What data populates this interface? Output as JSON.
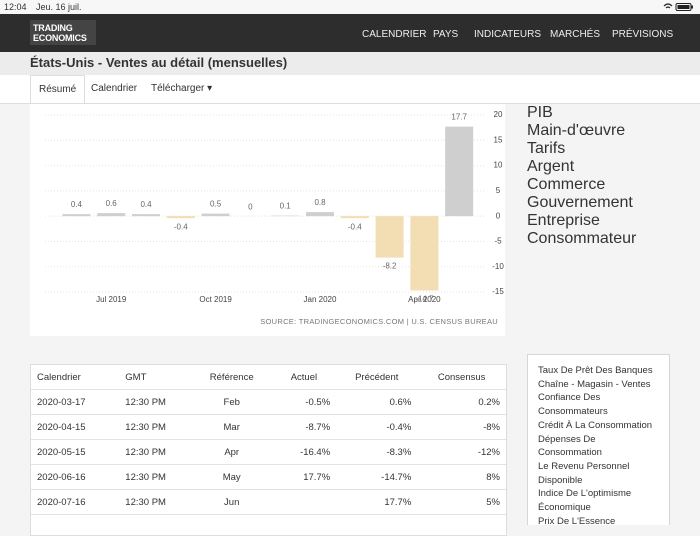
{
  "status_bar": {
    "time": "12:04",
    "date": "Jeu. 16 juil."
  },
  "nav": {
    "logo_line1": "TRADING",
    "logo_line2": "ECONOMICS",
    "links": [
      "CALENDRIER",
      "PAYS",
      "INDICATEURS",
      "MARCHÉS",
      "PRÉVISIONS"
    ]
  },
  "page_title": "États-Unis - Ventes au détail (mensuelles)",
  "tabs": [
    "Résumé",
    "Calendrier",
    "Télécharger"
  ],
  "chart_data": {
    "type": "bar",
    "categories": [
      null,
      "Jul 2019",
      null,
      null,
      "Oct 2019",
      null,
      null,
      "Jan 2020",
      null,
      null,
      "Apr 2020",
      null
    ],
    "values": [
      0.4,
      0.6,
      0.4,
      -0.4,
      0.5,
      0,
      0.1,
      0.8,
      -0.4,
      -8.2,
      -14.7,
      17.7
    ],
    "positive_color": "#cfcfcf",
    "negative_color": "#f3ddb2",
    "ylim": [
      -15,
      20
    ],
    "yticks": [
      20,
      15,
      10,
      5,
      0,
      -5,
      -10,
      -15
    ],
    "grid": true,
    "source": "SOURCE: TRADINGECONOMICS.COM | U.S. CENSUS BUREAU"
  },
  "table": {
    "columns": [
      "Calendrier",
      "GMT",
      "Référence",
      "Actuel",
      "Précédent",
      "Consensus"
    ],
    "rows": [
      [
        "2020-03-17",
        "12:30 PM",
        "Feb",
        "-0.5%",
        "0.6%",
        "0.2%"
      ],
      [
        "2020-04-15",
        "12:30 PM",
        "Mar",
        "-8.7%",
        "-0.4%",
        "-8%"
      ],
      [
        "2020-05-15",
        "12:30 PM",
        "Apr",
        "-16.4%",
        "-8.3%",
        "-12%"
      ],
      [
        "2020-06-16",
        "12:30 PM",
        "May",
        "17.7%",
        "-14.7%",
        "8%"
      ],
      [
        "2020-07-16",
        "12:30 PM",
        "Jun",
        "",
        "17.7%",
        "5%"
      ]
    ]
  },
  "sidebar": {
    "sections": [
      "PIB",
      "Main-d'œuvre",
      "Tarifs",
      "Argent",
      "Commerce",
      "Gouvernement",
      "Entreprise",
      "Consommateur"
    ],
    "links": [
      "Taux De Prêt Des Banques",
      "Chaîne - Magasin - Ventes",
      "Confiance Des Consommateurs",
      "Crédit À La Consommation",
      "Dépenses De Consommation",
      "Le Revenu Personnel Disponible",
      "Indice De L'optimisme Économique",
      "Prix De L'Essence"
    ]
  }
}
